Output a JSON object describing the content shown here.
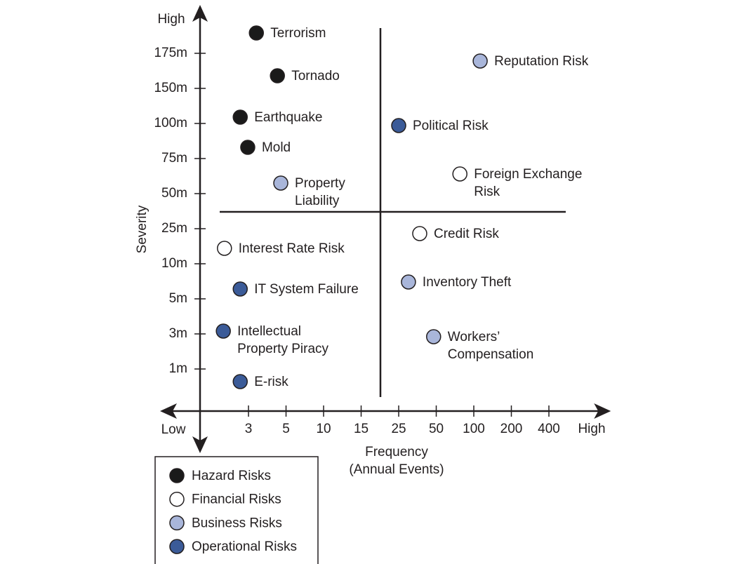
{
  "chart_data": {
    "type": "scatter",
    "y_label": "Severity",
    "x_label": [
      "Frequency",
      "(Annual Events)"
    ],
    "x_low_label": "Low",
    "x_high_label": "High",
    "y_high_label": "High",
    "xlim": [
      -0.29,
      10.5
    ],
    "ylim": [
      -0.2,
      11.5
    ],
    "xticks": [
      {
        "value": 1,
        "label": "3"
      },
      {
        "value": 2,
        "label": "5"
      },
      {
        "value": 3,
        "label": "10"
      },
      {
        "value": 4,
        "label": "15"
      },
      {
        "value": 5,
        "label": "25"
      },
      {
        "value": 6,
        "label": "50"
      },
      {
        "value": 7,
        "label": "100"
      },
      {
        "value": 8,
        "label": "200"
      },
      {
        "value": 9,
        "label": "400"
      }
    ],
    "yticks": [
      {
        "value": 1,
        "label": "1m"
      },
      {
        "value": 2,
        "label": "3m"
      },
      {
        "value": 3,
        "label": "5m"
      },
      {
        "value": 4,
        "label": "10m"
      },
      {
        "value": 5,
        "label": "25m"
      },
      {
        "value": 6,
        "label": "50m"
      },
      {
        "value": 7,
        "label": "75m"
      },
      {
        "value": 8,
        "label": "100m"
      },
      {
        "value": 9,
        "label": "150m"
      },
      {
        "value": 10,
        "label": "175m"
      }
    ],
    "series": [
      {
        "name": "Hazard Risks",
        "color": "#1a1a1a",
        "x": [
          1.21,
          1.77,
          0.78,
          0.98
        ],
        "values": [
          10.58,
          9.36,
          8.18,
          7.32
        ],
        "labels": [
          [
            "Terrorism"
          ],
          [
            "Tornado"
          ],
          [
            "Earthquake"
          ],
          [
            "Mold"
          ]
        ]
      },
      {
        "name": "Financial Risks",
        "color": "#ffffff",
        "x": [
          0.36,
          6.63,
          5.56
        ],
        "values": [
          4.44,
          6.56,
          4.86
        ],
        "labels": [
          [
            "Interest Rate Risk"
          ],
          [
            "Foreign Exchange",
            "Risk"
          ],
          [
            "Credit Risk"
          ]
        ]
      },
      {
        "name": "Business Risks",
        "color": "#a9b6da",
        "x": [
          1.86,
          7.17,
          5.26,
          5.93
        ],
        "values": [
          6.3,
          9.78,
          3.48,
          1.92
        ],
        "labels": [
          [
            "Property",
            "Liability"
          ],
          [
            "Reputation Risk"
          ],
          [
            "Inventory Theft"
          ],
          [
            "Workers’",
            "Compensation"
          ]
        ]
      },
      {
        "name": "Operational Risks",
        "color": "#3b5b98",
        "x": [
          0.78,
          0.33,
          0.78,
          5.0
        ],
        "values": [
          3.28,
          2.08,
          0.64,
          7.94
        ],
        "labels": [
          [
            "IT System Failure"
          ],
          [
            "Intellectual",
            "Property Piracy"
          ],
          [
            "E-risk"
          ],
          [
            "Political Risk"
          ]
        ]
      }
    ],
    "legend": "bottom-left"
  }
}
